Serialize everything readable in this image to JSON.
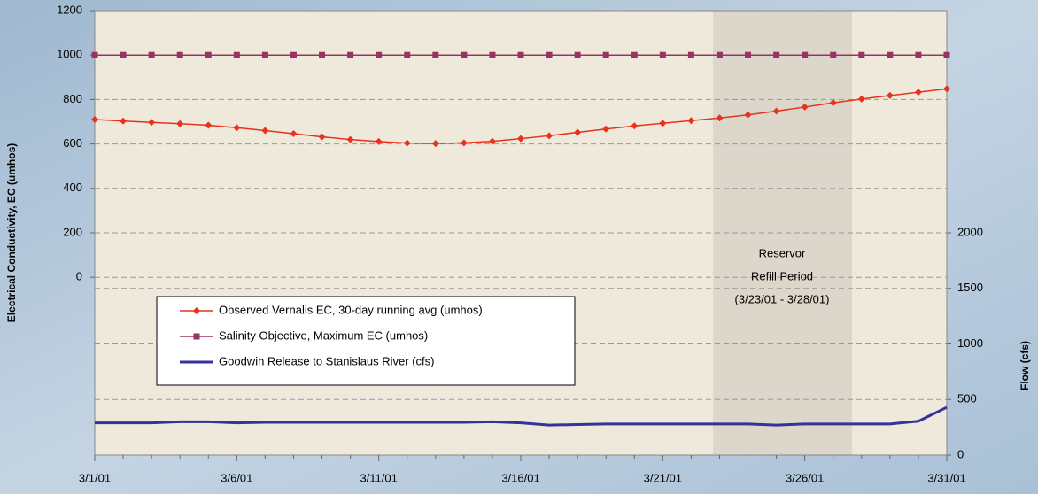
{
  "chart_data": {
    "type": "line",
    "categories": [
      "3/1/01",
      null,
      null,
      null,
      null,
      "3/6/01",
      null,
      null,
      null,
      null,
      "3/11/01",
      null,
      null,
      null,
      null,
      "3/16/01",
      null,
      null,
      null,
      null,
      "3/21/01",
      null,
      null,
      null,
      null,
      "3/26/01",
      null,
      null,
      null,
      null,
      "3/31/01"
    ],
    "ylabel": "Electrical Conductivity, EC (umhos)",
    "y2label": "Flow (cfs)",
    "ylim": [
      -800,
      1200
    ],
    "yticks": [
      0,
      200,
      400,
      600,
      800,
      1000,
      1200
    ],
    "y2lim": [
      0,
      4000
    ],
    "y2ticks": [
      0,
      500,
      1000,
      1500,
      2000
    ],
    "grid": true,
    "annotation": [
      "Reservor",
      "Refill Period",
      "(3/23/01 - 3/28/01)"
    ],
    "series": [
      {
        "name": "Observed Vernalis EC, 30-day running avg (umhos)",
        "color": "#e8321e",
        "marker": "diamond",
        "values": [
          710,
          703,
          697,
          691,
          684,
          673,
          660,
          646,
          632,
          620,
          611,
          604,
          602,
          605,
          612,
          624,
          637,
          652,
          667,
          681,
          693,
          705,
          717,
          731,
          748,
          766,
          785,
          802,
          818,
          833,
          848
        ]
      },
      {
        "name": "Salinity Objective, Maximum EC (umhos)",
        "color": "#993366",
        "marker": "square",
        "values": [
          1000,
          1000,
          1000,
          1000,
          1000,
          1000,
          1000,
          1000,
          1000,
          1000,
          1000,
          1000,
          1000,
          1000,
          1000,
          1000,
          1000,
          1000,
          1000,
          1000,
          1000,
          1000,
          1000,
          1000,
          1000,
          1000,
          1000,
          1000,
          1000,
          1000,
          1000
        ]
      },
      {
        "name": "Goodwin Release to Stanislaus River (cfs)",
        "color": "#333399",
        "axis": "y2",
        "values": [
          290,
          290,
          290,
          300,
          300,
          290,
          295,
          295,
          295,
          295,
          295,
          295,
          295,
          295,
          300,
          290,
          270,
          275,
          280,
          280,
          280,
          280,
          280,
          280,
          270,
          280,
          280,
          280,
          280,
          305,
          430
        ]
      }
    ]
  }
}
